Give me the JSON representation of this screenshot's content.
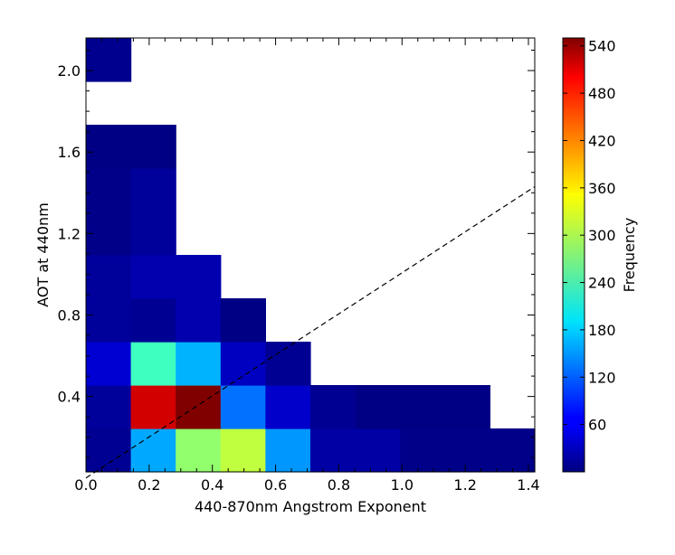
{
  "chart_data": {
    "type": "heatmap",
    "title": "",
    "xlabel": "440-870nm Angstrom Exponent",
    "ylabel": "AOT at 440nm",
    "colorbar_label": "Frequency",
    "colormap": "jet",
    "xlim": [
      0.0,
      1.42
    ],
    "ylim": [
      0.03,
      2.16
    ],
    "x_ticks": [
      "0.0",
      "0.2",
      "0.4",
      "0.6",
      "0.8",
      "1.0",
      "1.2",
      "1.4"
    ],
    "x_tick_values": [
      0.0,
      0.2,
      0.4,
      0.6,
      0.8,
      1.0,
      1.2,
      1.4
    ],
    "y_ticks": [
      "0.4",
      "0.8",
      "1.2",
      "1.6",
      "2.0"
    ],
    "y_tick_values": [
      0.4,
      0.8,
      1.2,
      1.6,
      2.0
    ],
    "colorbar_ticks": [
      "60",
      "120",
      "180",
      "240",
      "300",
      "360",
      "420",
      "480",
      "540"
    ],
    "colorbar_tick_values": [
      60,
      120,
      180,
      240,
      300,
      360,
      420,
      480,
      540
    ],
    "colorbar_range": [
      0,
      550
    ],
    "x_bin_edges": [
      0.0,
      0.142,
      0.284,
      0.426,
      0.568,
      0.71,
      0.852,
      0.994,
      1.136,
      1.278,
      1.42
    ],
    "y_bin_edges": [
      0.03,
      0.243,
      0.456,
      0.669,
      0.882,
      1.095,
      1.308,
      1.521,
      1.734,
      1.947,
      2.16
    ],
    "counts": [
      [
        10,
        160,
        285,
        310,
        150,
        20,
        20,
        5,
        5,
        5
      ],
      [
        15,
        505,
        550,
        130,
        40,
        10,
        3,
        3,
        3,
        null
      ],
      [
        45,
        240,
        165,
        35,
        10,
        null,
        null,
        null,
        null,
        null
      ],
      [
        15,
        10,
        25,
        3,
        null,
        null,
        null,
        null,
        null,
        null
      ],
      [
        15,
        25,
        25,
        null,
        null,
        null,
        null,
        null,
        null,
        null
      ],
      [
        5,
        15,
        null,
        null,
        null,
        null,
        null,
        null,
        null,
        null
      ],
      [
        5,
        15,
        null,
        null,
        null,
        null,
        null,
        null,
        null,
        null
      ],
      [
        3,
        3,
        null,
        null,
        null,
        null,
        null,
        null,
        null,
        null
      ],
      [
        null,
        null,
        null,
        null,
        null,
        null,
        null,
        null,
        null,
        null
      ],
      [
        8,
        null,
        null,
        null,
        null,
        null,
        null,
        null,
        null,
        null
      ]
    ],
    "reference_line": {
      "style": "dashed",
      "color": "#000000",
      "points": [
        [
          0.0,
          0.0
        ],
        [
          1.42,
          1.43
        ]
      ]
    },
    "grid": false
  }
}
